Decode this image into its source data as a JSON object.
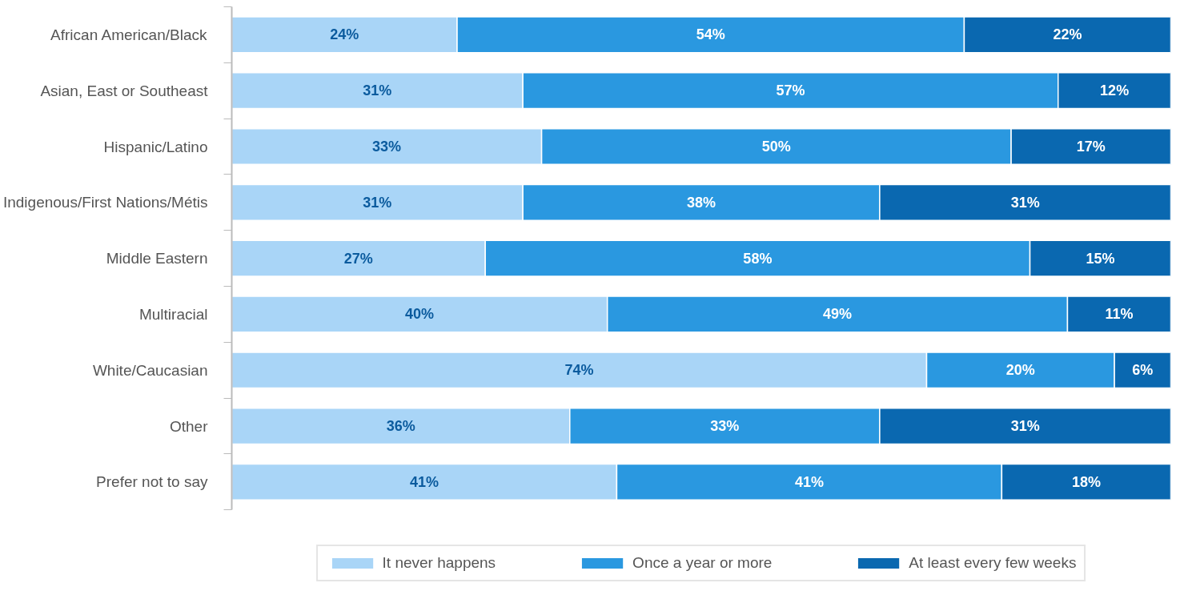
{
  "chart_data": {
    "type": "bar",
    "orientation": "horizontal",
    "stacked": true,
    "legend": "bottom",
    "grid": false,
    "tick_labels": "y",
    "xlim": [
      0,
      100
    ],
    "categories": [
      "African American/Black",
      "Asian, East or Southeast",
      "Hispanic/Latino",
      "Indigenous/First Nations/Métis",
      "Middle Eastern",
      "Multiracial",
      "White/Caucasian",
      "Other",
      "Prefer not to say"
    ],
    "series": [
      {
        "name": "It never happens",
        "color": "#a9d5f7",
        "values": [
          24,
          31,
          33,
          31,
          27,
          40,
          74,
          36,
          41
        ],
        "value_labels": [
          "24%",
          "31%",
          "33%",
          "31%",
          "27%",
          "40%",
          "74%",
          "36%",
          "41%"
        ]
      },
      {
        "name": "Once a year or more",
        "color": "#2a98e0",
        "values": [
          54,
          57,
          50,
          38,
          58,
          49,
          20,
          33,
          41
        ],
        "value_labels": [
          "54%",
          "57%",
          "50%",
          "38%",
          "58%",
          "49%",
          "20%",
          "33%",
          "41%"
        ]
      },
      {
        "name": "At least every few weeks",
        "color": "#0a68b0",
        "values": [
          22,
          12,
          17,
          31,
          15,
          11,
          6,
          31,
          18
        ],
        "value_labels": [
          "22%",
          "12%",
          "17%",
          "31%",
          "15%",
          "11%",
          "6%",
          "31%",
          "18%"
        ]
      }
    ]
  }
}
